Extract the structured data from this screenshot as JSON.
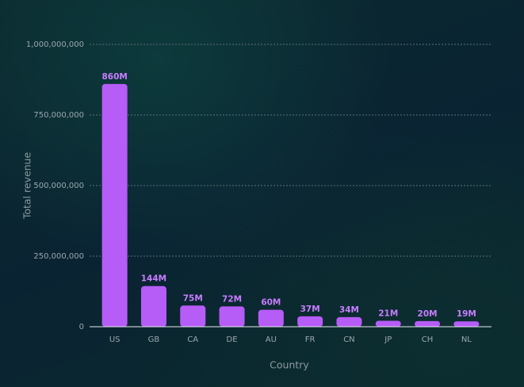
{
  "chart_data": {
    "type": "bar",
    "x_label": "Country",
    "y_label": "Total revenue",
    "categories": [
      "US",
      "GB",
      "CA",
      "DE",
      "AU",
      "FR",
      "CN",
      "JP",
      "CH",
      "NL"
    ],
    "values": [
      860000000,
      144000000,
      75000000,
      72000000,
      60000000,
      37000000,
      34000000,
      21000000,
      20000000,
      19000000
    ],
    "value_labels": [
      "860M",
      "144M",
      "75M",
      "72M",
      "60M",
      "37M",
      "34M",
      "21M",
      "20M",
      "19M"
    ],
    "color": "#b65cf7",
    "ylim": [
      0,
      1000000000
    ],
    "yticks": [
      0,
      {
        "value": 250000000,
        "label": "250,000,000"
      },
      {
        "value": 500000000,
        "label": "500,000,000"
      },
      {
        "value": 750000000,
        "label": "750,000,000"
      },
      {
        "value": 1000000000,
        "label": "1,000,000,000"
      }
    ],
    "grid": true
  }
}
